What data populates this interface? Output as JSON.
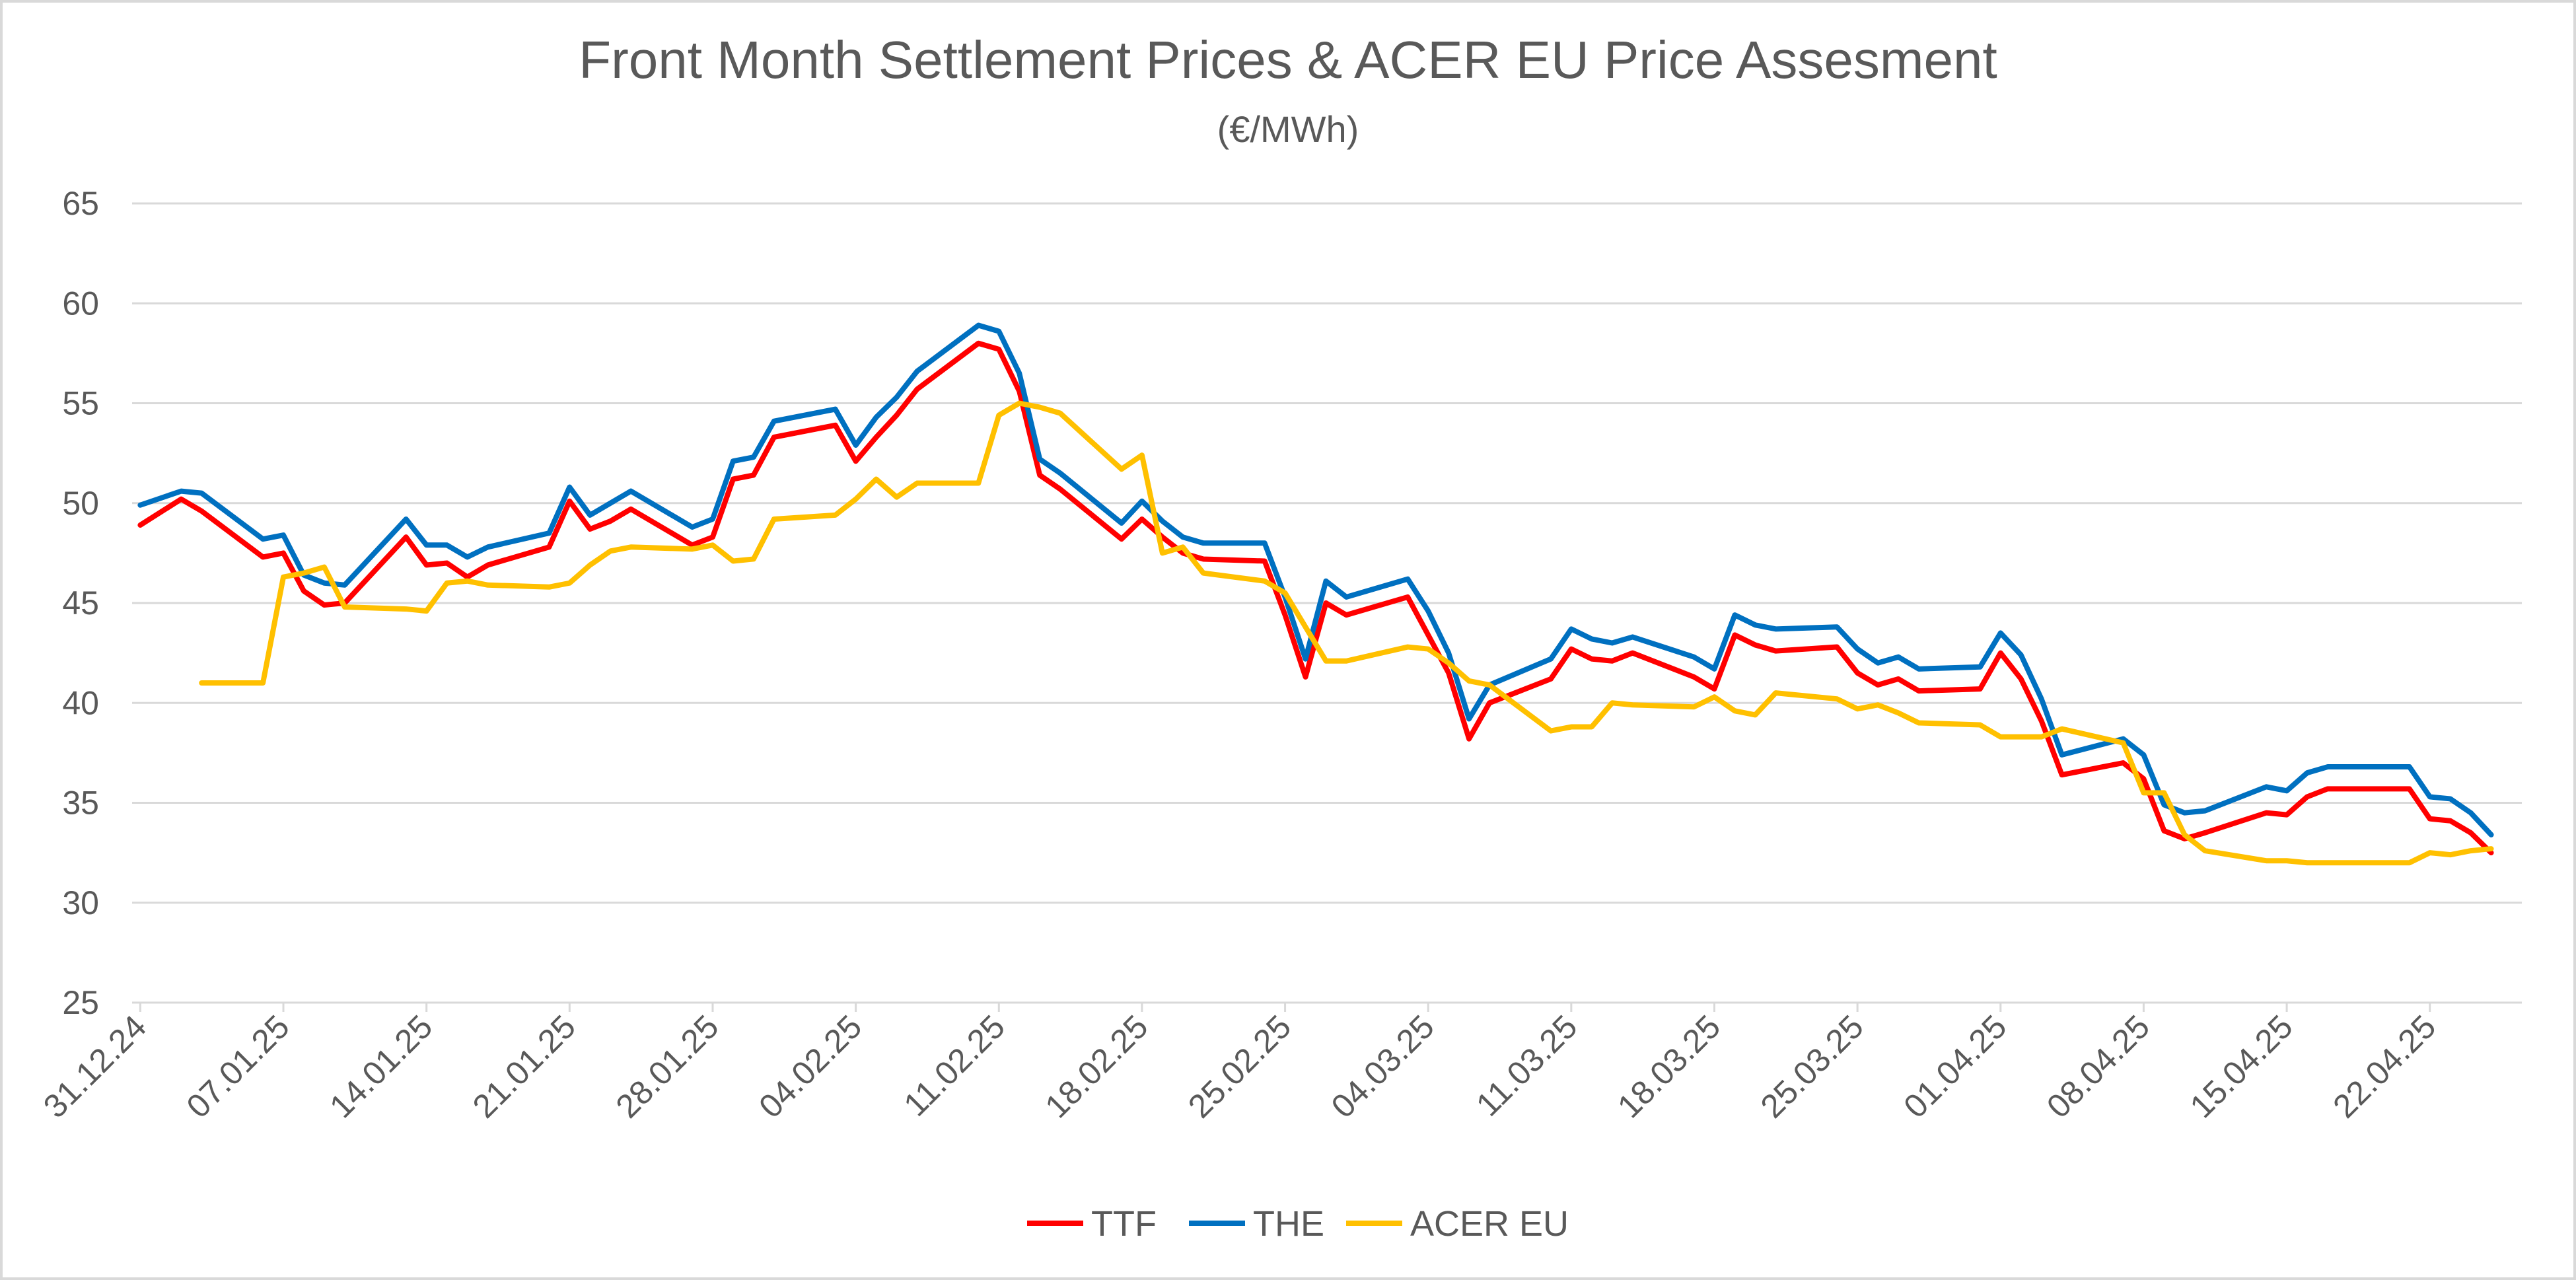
{
  "chart_data": {
    "type": "line",
    "title": "Front Month Settlement Prices & ACER EU Price Assesment",
    "subtitle": "(€/MWh)",
    "xlabel": "",
    "ylabel": "",
    "ylim": [
      25,
      65
    ],
    "yticks": [
      25,
      30,
      35,
      40,
      45,
      50,
      55,
      60,
      65
    ],
    "xlim": [
      "2024-12-31",
      "2025-04-26"
    ],
    "xtick_labels": [
      "31.12.24",
      "07.01.25",
      "14.01.25",
      "21.01.25",
      "28.01.25",
      "04.02.25",
      "11.02.25",
      "18.02.25",
      "25.02.25",
      "04.03.25",
      "11.03.25",
      "18.03.25",
      "25.03.25",
      "01.04.25",
      "08.04.25",
      "15.04.25",
      "22.04.25"
    ],
    "grid": true,
    "legend_position": "bottom",
    "dates": [
      "2024-12-31",
      "2025-01-02",
      "2025-01-03",
      "2025-01-06",
      "2025-01-07",
      "2025-01-08",
      "2025-01-09",
      "2025-01-10",
      "2025-01-13",
      "2025-01-14",
      "2025-01-15",
      "2025-01-16",
      "2025-01-17",
      "2025-01-20",
      "2025-01-21",
      "2025-01-22",
      "2025-01-23",
      "2025-01-24",
      "2025-01-27",
      "2025-01-28",
      "2025-01-29",
      "2025-01-30",
      "2025-01-31",
      "2025-02-03",
      "2025-02-04",
      "2025-02-05",
      "2025-02-06",
      "2025-02-07",
      "2025-02-10",
      "2025-02-11",
      "2025-02-12",
      "2025-02-13",
      "2025-02-14",
      "2025-02-17",
      "2025-02-18",
      "2025-02-19",
      "2025-02-20",
      "2025-02-21",
      "2025-02-24",
      "2025-02-25",
      "2025-02-26",
      "2025-02-27",
      "2025-02-28",
      "2025-03-03",
      "2025-03-04",
      "2025-03-05",
      "2025-03-06",
      "2025-03-07",
      "2025-03-10",
      "2025-03-11",
      "2025-03-12",
      "2025-03-13",
      "2025-03-14",
      "2025-03-17",
      "2025-03-18",
      "2025-03-19",
      "2025-03-20",
      "2025-03-21",
      "2025-03-24",
      "2025-03-25",
      "2025-03-26",
      "2025-03-27",
      "2025-03-28",
      "2025-03-31",
      "2025-04-01",
      "2025-04-02",
      "2025-04-03",
      "2025-04-04",
      "2025-04-07",
      "2025-04-08",
      "2025-04-09",
      "2025-04-10",
      "2025-04-11",
      "2025-04-14",
      "2025-04-15",
      "2025-04-16",
      "2025-04-17",
      "2025-04-21",
      "2025-04-22",
      "2025-04-23",
      "2025-04-24",
      "2025-04-25"
    ],
    "series": [
      {
        "name": "TTF",
        "color": "#FF0000",
        "values": [
          48.9,
          50.2,
          49.6,
          47.3,
          47.5,
          45.6,
          44.9,
          45.0,
          48.3,
          46.9,
          47.0,
          46.3,
          46.9,
          47.8,
          50.1,
          48.7,
          49.1,
          49.7,
          47.9,
          48.3,
          51.2,
          51.4,
          53.3,
          53.9,
          52.1,
          53.3,
          54.4,
          55.7,
          58.0,
          57.7,
          55.6,
          51.4,
          50.7,
          48.2,
          49.2,
          48.3,
          47.5,
          47.2,
          47.1,
          44.4,
          41.3,
          45.0,
          44.4,
          45.3,
          43.4,
          41.5,
          38.2,
          40.0,
          41.2,
          42.7,
          42.2,
          42.1,
          42.5,
          41.3,
          40.7,
          43.4,
          42.9,
          42.6,
          42.8,
          41.5,
          40.9,
          41.2,
          40.6,
          40.7,
          42.5,
          41.2,
          39.1,
          36.4,
          37.0,
          36.2,
          33.6,
          33.2,
          33.5,
          34.5,
          34.4,
          35.3,
          35.7,
          35.7,
          34.2,
          34.1,
          33.5,
          32.5
        ]
      },
      {
        "name": "THE",
        "color": "#0070C0",
        "values": [
          49.9,
          50.6,
          50.5,
          48.2,
          48.4,
          46.4,
          46.0,
          45.9,
          49.2,
          47.9,
          47.9,
          47.3,
          47.8,
          48.5,
          50.8,
          49.4,
          50.0,
          50.6,
          48.8,
          49.2,
          52.1,
          52.3,
          54.1,
          54.7,
          52.9,
          54.3,
          55.3,
          56.6,
          58.9,
          58.6,
          56.5,
          52.2,
          51.5,
          49.0,
          50.1,
          49.1,
          48.3,
          48.0,
          48.0,
          45.3,
          42.2,
          46.1,
          45.3,
          46.2,
          44.6,
          42.5,
          39.2,
          40.9,
          42.2,
          43.7,
          43.2,
          43.0,
          43.3,
          42.3,
          41.7,
          44.4,
          43.9,
          43.7,
          43.8,
          42.7,
          42.0,
          42.3,
          41.7,
          41.8,
          43.5,
          42.4,
          40.2,
          37.4,
          38.2,
          37.4,
          34.9,
          34.5,
          34.6,
          35.8,
          35.6,
          36.5,
          36.8,
          36.8,
          35.3,
          35.2,
          34.5,
          33.4
        ]
      },
      {
        "name": "ACER EU",
        "color": "#FFC000",
        "values": [
          null,
          null,
          41.0,
          41.0,
          46.3,
          46.5,
          46.8,
          44.8,
          44.7,
          44.6,
          46.0,
          46.1,
          45.9,
          45.8,
          46.0,
          46.9,
          47.6,
          47.8,
          47.7,
          47.9,
          47.1,
          47.2,
          49.2,
          49.4,
          50.2,
          51.2,
          50.3,
          51.0,
          51.0,
          54.4,
          55.0,
          54.8,
          54.5,
          51.7,
          52.4,
          47.5,
          47.8,
          46.5,
          46.1,
          45.5,
          43.8,
          42.1,
          42.1,
          42.8,
          42.7,
          42.0,
          41.1,
          40.9,
          38.6,
          38.8,
          38.8,
          40.0,
          39.9,
          39.8,
          40.3,
          39.6,
          39.4,
          40.5,
          40.2,
          39.7,
          39.9,
          39.5,
          39.0,
          38.9,
          38.3,
          38.3,
          38.3,
          38.7,
          38.0,
          35.5,
          35.5,
          33.4,
          32.6,
          32.1,
          32.1,
          32.0,
          32.0,
          32.0,
          32.5,
          32.4,
          32.6,
          32.7
        ]
      }
    ]
  }
}
